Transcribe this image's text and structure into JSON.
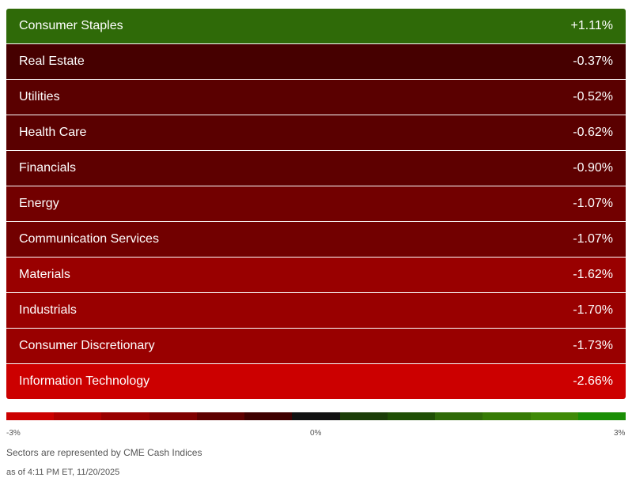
{
  "sectors": [
    {
      "name": "Consumer Staples",
      "change": "+1.11%",
      "color": "#2f6a08"
    },
    {
      "name": "Real Estate",
      "change": "-0.37%",
      "color": "#460000"
    },
    {
      "name": "Utilities",
      "change": "-0.52%",
      "color": "#5a0000"
    },
    {
      "name": "Health Care",
      "change": "-0.62%",
      "color": "#5a0000"
    },
    {
      "name": "Financials",
      "change": "-0.90%",
      "color": "#5e0000"
    },
    {
      "name": "Energy",
      "change": "-1.07%",
      "color": "#720000"
    },
    {
      "name": "Communication Services",
      "change": "-1.07%",
      "color": "#720000"
    },
    {
      "name": "Materials",
      "change": "-1.62%",
      "color": "#990000"
    },
    {
      "name": "Industrials",
      "change": "-1.70%",
      "color": "#990000"
    },
    {
      "name": "Consumer Discretionary",
      "change": "-1.73%",
      "color": "#990000"
    },
    {
      "name": "Information Technology",
      "change": "-2.66%",
      "color": "#cc0000"
    }
  ],
  "scale": {
    "min_label": "-3%",
    "mid_label": "0%",
    "max_label": "3%",
    "colors": [
      "#cc0000",
      "#b20000",
      "#990000",
      "#7f0000",
      "#5e0000",
      "#3e0000",
      "#111111",
      "#1b3d08",
      "#1f4f05",
      "#2f6a08",
      "#367b05",
      "#3f8a07",
      "#1a8e05"
    ]
  },
  "footer": {
    "source_note": "Sectors are represented by CME Cash Indices",
    "timestamp": "as of 4:11 PM ET, 11/20/2025"
  }
}
